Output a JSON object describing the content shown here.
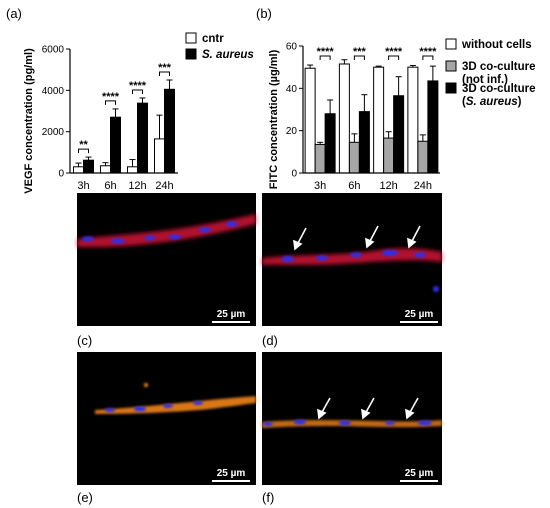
{
  "colors": {
    "white_bar": "#ffffff",
    "gray_bar": "#a6a6a6",
    "black_bar": "#000000",
    "red_stain": "#e0163a",
    "blue_stain": "#2a2ef0",
    "orange_stain": "#ff8c1a"
  },
  "panel_labels": {
    "a": "(a)",
    "b": "(b)",
    "c": "(c)",
    "d": "(d)",
    "e": "(e)",
    "f": "(f)"
  },
  "micrographs": {
    "scale_bar_label": "25 µm",
    "arrows": {
      "d": 3,
      "f": 3
    }
  },
  "chart_data": [
    {
      "id": "a",
      "type": "bar",
      "title": "",
      "xlabel": "",
      "ylabel": "VEGF concentration (pg/ml)",
      "ylim": [
        0,
        6000
      ],
      "yticks": [
        "0",
        "2000",
        "4000",
        "6000"
      ],
      "categories": [
        "3h",
        "6h",
        "12h",
        "24h"
      ],
      "series": [
        {
          "name": "cntr",
          "color": "#ffffff",
          "values": [
            300,
            350,
            300,
            1650
          ],
          "errors": [
            180,
            150,
            350,
            1150
          ]
        },
        {
          "name": "S. aureus",
          "name_italic": true,
          "color": "#000000",
          "values": [
            620,
            2700,
            3380,
            4050
          ],
          "errors": [
            150,
            400,
            250,
            450
          ]
        }
      ],
      "significance": [
        "**",
        "****",
        "****",
        "***"
      ],
      "legend_position": "top-right",
      "grid": false
    },
    {
      "id": "b",
      "type": "bar",
      "title": "",
      "xlabel": "",
      "ylabel": "FITC concentration (µg/ml)",
      "ylim": [
        0,
        60
      ],
      "yticks": [
        "0",
        "20",
        "40",
        "60"
      ],
      "categories": [
        "3h",
        "6h",
        "12h",
        "24h"
      ],
      "series": [
        {
          "name": "without cells",
          "color": "#ffffff",
          "values": [
            49.5,
            51.5,
            50,
            50
          ],
          "errors": [
            1.5,
            2,
            0.5,
            0.8
          ]
        },
        {
          "name": "3D co-culture",
          "name_line2": "(not inf.)",
          "color": "#a6a6a6",
          "values": [
            13.5,
            14.5,
            16.5,
            15
          ],
          "errors": [
            1,
            4,
            3,
            3
          ]
        },
        {
          "name": "3D co-culture",
          "name_line2": "(S. aureus)",
          "name_line2_italic": true,
          "color": "#000000",
          "values": [
            28,
            29,
            36.5,
            43.5
          ],
          "errors": [
            6.5,
            8,
            9,
            7
          ]
        }
      ],
      "significance": [
        "****",
        "***",
        "****",
        "****"
      ],
      "legend_position": "right",
      "grid": false
    }
  ]
}
